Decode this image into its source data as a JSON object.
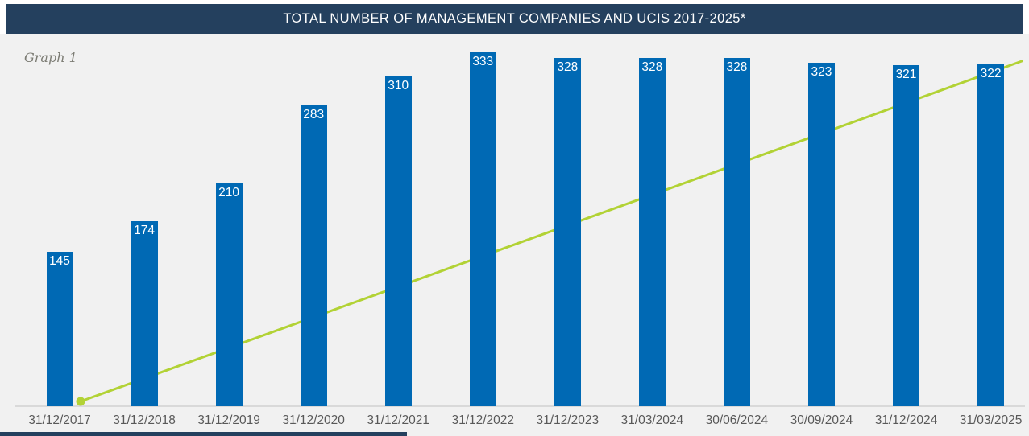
{
  "header": {
    "title": "TOTAL NUMBER OF MANAGEMENT COMPANIES AND UCIS 2017-2025*",
    "background_color": "#24405e",
    "text_color": "#ffffff"
  },
  "graph_label": "Graph 1",
  "chart_data": {
    "type": "bar",
    "title": "TOTAL NUMBER OF MANAGEMENT COMPANIES AND UCIS 2017-2025*",
    "categories": [
      "31/12/2017",
      "31/12/2018",
      "31/12/2019",
      "31/12/2020",
      "31/12/2021",
      "31/12/2022",
      "31/12/2023",
      "31/03/2024",
      "30/06/2024",
      "30/09/2024",
      "31/12/2024",
      "31/03/2025"
    ],
    "series": [
      {
        "name": "Total number of management companies",
        "type": "bar",
        "color": "#0069b4",
        "values": [
          145,
          174,
          210,
          283,
          310,
          333,
          328,
          328,
          328,
          323,
          321,
          322
        ],
        "data_labels": "inside-top, white"
      }
    ],
    "trend_line": {
      "type": "line",
      "color": "#b2d235",
      "description": "unlabeled straight rising line with round marker at start, from baseline under 31/12/2017-31/12/2018 up past the top of the last bar",
      "marker_at_start": true
    },
    "ylim": [
      0,
      350
    ],
    "gridlines": false,
    "legend": "none",
    "plot_background": "#f1f1f1",
    "axis_line_color": "#d9d9d9",
    "tick_label_color": "#595959",
    "bar_label_color": "#ffffff"
  },
  "footer": {
    "strip_color": "#24405e"
  }
}
